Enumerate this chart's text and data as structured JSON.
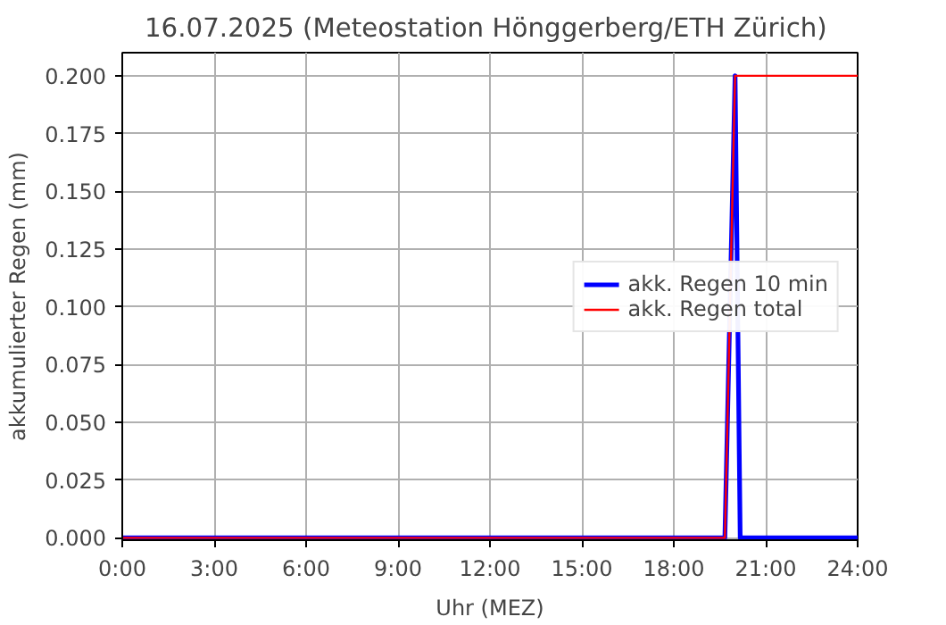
{
  "chart_data": {
    "type": "line",
    "title": "16.07.2025  (Meteostation Hönggerberg/ETH Zürich)",
    "xlabel": "Uhr (MEZ)",
    "ylabel": "akkumulierter Regen (mm)",
    "x": [
      0,
      19.667,
      20.0,
      20.167,
      24
    ],
    "series": [
      {
        "name": "akk. Regen 10 min",
        "color": "#0000ff",
        "values": [
          0,
          0,
          0.2,
          0,
          0
        ]
      },
      {
        "name": "akk. Regen total",
        "color": "#ff0000",
        "values": [
          0,
          0,
          0.2,
          0.2,
          0.2
        ]
      }
    ],
    "xlim": [
      0,
      24
    ],
    "xticks": [
      {
        "value": 0,
        "label": "0:00"
      },
      {
        "value": 3,
        "label": "3:00"
      },
      {
        "value": 6,
        "label": "6:00"
      },
      {
        "value": 9,
        "label": "9:00"
      },
      {
        "value": 12,
        "label": "12:00"
      },
      {
        "value": 15,
        "label": "15:00"
      },
      {
        "value": 18,
        "label": "18:00"
      },
      {
        "value": 21,
        "label": "21:00"
      },
      {
        "value": 24,
        "label": "24:00"
      }
    ],
    "ylim": [
      -0.001,
      0.21
    ],
    "yticks": [
      {
        "value": 0,
        "label": "0.000"
      },
      {
        "value": 0.025,
        "label": "0.025"
      },
      {
        "value": 0.05,
        "label": "0.050"
      },
      {
        "value": 0.075,
        "label": "0.075"
      },
      {
        "value": 0.1,
        "label": "0.100"
      },
      {
        "value": 0.125,
        "label": "0.125"
      },
      {
        "value": 0.15,
        "label": "0.150"
      },
      {
        "value": 0.175,
        "label": "0.175"
      },
      {
        "value": 0.2,
        "label": "0.200"
      }
    ],
    "grid": true,
    "legend": "right"
  }
}
